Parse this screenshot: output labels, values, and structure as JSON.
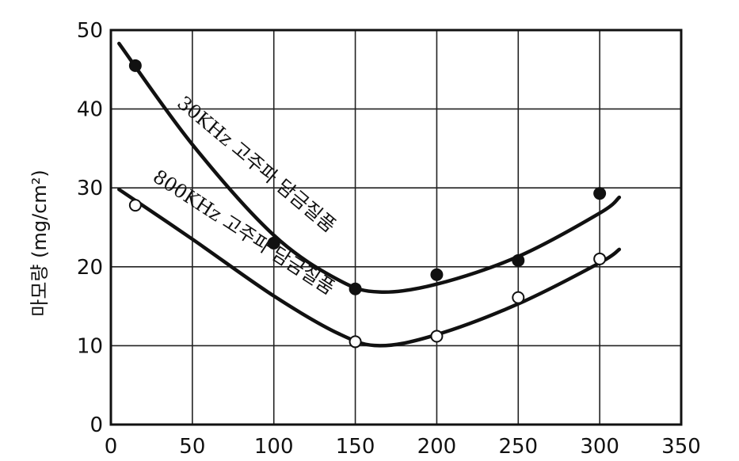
{
  "chart_data": {
    "type": "line",
    "title": "",
    "xlabel": "",
    "ylabel": "마모량 (mg/cm²)",
    "xlim": [
      0,
      350
    ],
    "ylim": [
      0,
      50
    ],
    "xticks": [
      "0",
      "50",
      "100",
      "150",
      "200",
      "250",
      "300",
      "350"
    ],
    "yticks": [
      "0",
      "10",
      "20",
      "30",
      "40",
      "50"
    ],
    "grid": true,
    "series": [
      {
        "name": "30KHz 고주파 담금질품",
        "marker": "filled-circle",
        "points": [
          [
            15,
            45.5
          ],
          [
            100,
            23
          ],
          [
            150,
            17.2
          ],
          [
            200,
            19
          ],
          [
            250,
            20.8
          ],
          [
            300,
            29.3
          ]
        ],
        "fit": [
          [
            5,
            48.3
          ],
          [
            50,
            35.5
          ],
          [
            100,
            24.0
          ],
          [
            140,
            18.3
          ],
          [
            165,
            16.8
          ],
          [
            200,
            17.8
          ],
          [
            250,
            21.3
          ],
          [
            300,
            26.8
          ],
          [
            312,
            28.8
          ]
        ]
      },
      {
        "name": "800KHz 고주파 담금질품",
        "marker": "open-circle",
        "points": [
          [
            15,
            27.8
          ],
          [
            150,
            10.5
          ],
          [
            200,
            11.2
          ],
          [
            250,
            16.1
          ],
          [
            300,
            21
          ]
        ],
        "fit": [
          [
            5,
            29.8
          ],
          [
            50,
            23.5
          ],
          [
            100,
            16.3
          ],
          [
            140,
            11.5
          ],
          [
            165,
            10.0
          ],
          [
            200,
            11.4
          ],
          [
            250,
            15.3
          ],
          [
            300,
            20.5
          ],
          [
            312,
            22.2
          ]
        ]
      }
    ]
  },
  "colors": {
    "line": "#111111",
    "grid": "#111111",
    "background": "#ffffff"
  }
}
